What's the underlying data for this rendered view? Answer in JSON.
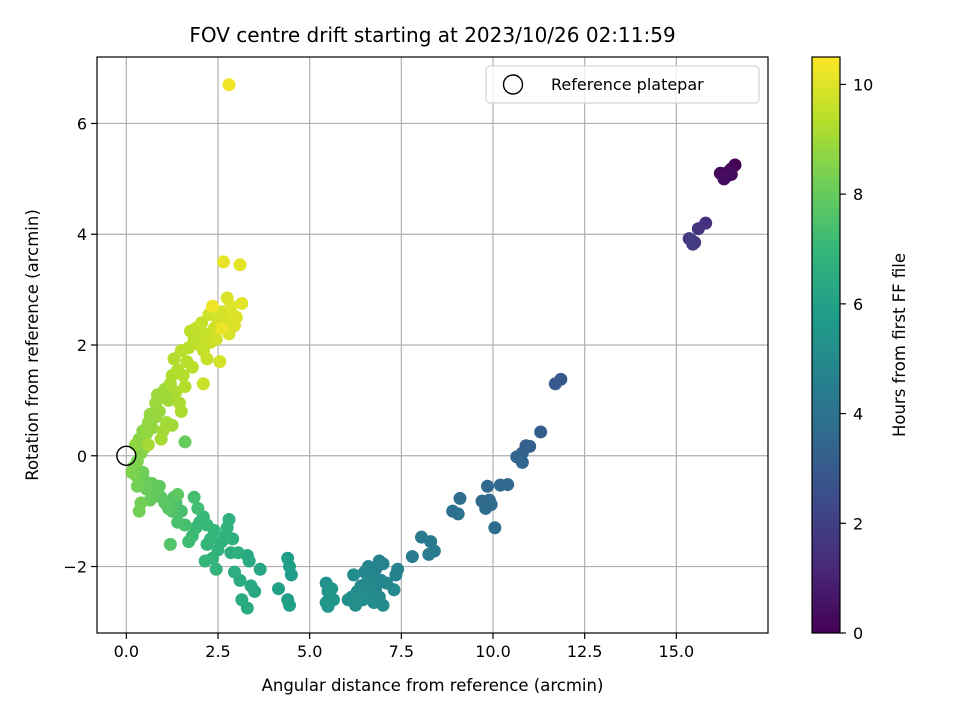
{
  "chart_data": {
    "type": "scatter",
    "title": "FOV centre drift starting at 2023/10/26 02:11:59",
    "xlabel": "Angular distance from reference (arcmin)",
    "ylabel": "Rotation from reference (arcmin)",
    "xlim": [
      -0.8,
      17.5
    ],
    "ylim": [
      -3.2,
      7.2
    ],
    "xticks": [
      0.0,
      2.5,
      5.0,
      7.5,
      10.0,
      12.5,
      15.0
    ],
    "xtick_labels": [
      "0.0",
      "2.5",
      "5.0",
      "7.5",
      "10.0",
      "12.5",
      "15.0"
    ],
    "yticks": [
      -2,
      0,
      2,
      4,
      6
    ],
    "ytick_labels": [
      "−2",
      "0",
      "2",
      "4",
      "6"
    ],
    "grid": true,
    "legend": {
      "placement": "top-right",
      "entries": [
        {
          "label": "Reference platepar",
          "marker": "open-circle"
        }
      ]
    },
    "reference_point": {
      "x": 0.0,
      "y": 0.0
    },
    "colorbar": {
      "label": "Hours from first FF file",
      "colormap": "viridis",
      "range": [
        0,
        10.5
      ],
      "ticks": [
        0,
        2,
        4,
        6,
        8,
        10
      ],
      "tick_labels": [
        "0",
        "2",
        "4",
        "6",
        "8",
        "10"
      ],
      "colors": [
        "#440154",
        "#482878",
        "#3e4989",
        "#31688e",
        "#26828e",
        "#1f9e89",
        "#35b779",
        "#6ece58",
        "#b5de2b",
        "#fde725"
      ]
    },
    "points": [
      {
        "x": 16.6,
        "y": 5.25,
        "t": 0.05
      },
      {
        "x": 16.5,
        "y": 5.18,
        "t": 0.1
      },
      {
        "x": 16.4,
        "y": 5.12,
        "t": 0.15
      },
      {
        "x": 16.3,
        "y": 5.05,
        "t": 0.2
      },
      {
        "x": 16.2,
        "y": 5.1,
        "t": 0.22
      },
      {
        "x": 16.4,
        "y": 5.06,
        "t": 0.25
      },
      {
        "x": 16.5,
        "y": 5.08,
        "t": 0.3
      },
      {
        "x": 16.3,
        "y": 5.0,
        "t": 0.35
      },
      {
        "x": 15.8,
        "y": 4.2,
        "t": 1.5
      },
      {
        "x": 15.6,
        "y": 4.1,
        "t": 1.6
      },
      {
        "x": 15.35,
        "y": 3.92,
        "t": 1.75
      },
      {
        "x": 15.5,
        "y": 3.85,
        "t": 1.8
      },
      {
        "x": 15.45,
        "y": 3.82,
        "t": 1.85
      },
      {
        "x": 15.4,
        "y": 3.9,
        "t": 1.9
      },
      {
        "x": 11.85,
        "y": 1.38,
        "t": 2.9
      },
      {
        "x": 11.7,
        "y": 1.3,
        "t": 2.95
      },
      {
        "x": 11.3,
        "y": 0.43,
        "t": 3.1
      },
      {
        "x": 11.0,
        "y": 0.17,
        "t": 3.2
      },
      {
        "x": 10.9,
        "y": 0.18,
        "t": 3.25
      },
      {
        "x": 10.8,
        "y": 0.05,
        "t": 3.3
      },
      {
        "x": 10.65,
        "y": -0.02,
        "t": 3.35
      },
      {
        "x": 10.8,
        "y": -0.12,
        "t": 3.4
      },
      {
        "x": 10.4,
        "y": -0.52,
        "t": 3.5
      },
      {
        "x": 10.2,
        "y": -0.53,
        "t": 3.55
      },
      {
        "x": 9.85,
        "y": -0.55,
        "t": 3.6
      },
      {
        "x": 9.9,
        "y": -0.8,
        "t": 3.62
      },
      {
        "x": 9.7,
        "y": -0.82,
        "t": 3.65
      },
      {
        "x": 9.8,
        "y": -0.95,
        "t": 3.68
      },
      {
        "x": 9.95,
        "y": -0.88,
        "t": 3.7
      },
      {
        "x": 10.05,
        "y": -1.3,
        "t": 3.72
      },
      {
        "x": 9.1,
        "y": -0.77,
        "t": 3.85
      },
      {
        "x": 8.9,
        "y": -1.0,
        "t": 3.9
      },
      {
        "x": 9.05,
        "y": -1.05,
        "t": 3.92
      },
      {
        "x": 8.3,
        "y": -1.55,
        "t": 4.2
      },
      {
        "x": 8.05,
        "y": -1.47,
        "t": 4.25
      },
      {
        "x": 8.4,
        "y": -1.72,
        "t": 4.3
      },
      {
        "x": 8.25,
        "y": -1.78,
        "t": 4.35
      },
      {
        "x": 7.8,
        "y": -1.82,
        "t": 4.4
      },
      {
        "x": 7.4,
        "y": -2.05,
        "t": 4.6
      },
      {
        "x": 7.35,
        "y": -2.15,
        "t": 4.65
      },
      {
        "x": 7.0,
        "y": -1.95,
        "t": 4.7
      },
      {
        "x": 6.9,
        "y": -1.9,
        "t": 4.72
      },
      {
        "x": 6.8,
        "y": -2.05,
        "t": 4.75
      },
      {
        "x": 6.6,
        "y": -2.0,
        "t": 4.78
      },
      {
        "x": 6.5,
        "y": -2.1,
        "t": 4.8
      },
      {
        "x": 6.7,
        "y": -2.2,
        "t": 4.82
      },
      {
        "x": 6.95,
        "y": -2.25,
        "t": 4.85
      },
      {
        "x": 7.1,
        "y": -2.3,
        "t": 4.88
      },
      {
        "x": 6.55,
        "y": -2.3,
        "t": 4.9
      },
      {
        "x": 6.4,
        "y": -2.35,
        "t": 4.92
      },
      {
        "x": 6.8,
        "y": -2.4,
        "t": 4.95
      },
      {
        "x": 7.3,
        "y": -2.42,
        "t": 4.98
      },
      {
        "x": 6.6,
        "y": -2.5,
        "t": 5.0
      },
      {
        "x": 6.9,
        "y": -2.55,
        "t": 5.02
      },
      {
        "x": 7.0,
        "y": -2.7,
        "t": 5.05
      },
      {
        "x": 6.75,
        "y": -2.65,
        "t": 5.08
      },
      {
        "x": 6.2,
        "y": -2.15,
        "t": 5.1
      },
      {
        "x": 6.3,
        "y": -2.45,
        "t": 5.12
      },
      {
        "x": 6.15,
        "y": -2.55,
        "t": 5.15
      },
      {
        "x": 6.25,
        "y": -2.7,
        "t": 5.18
      },
      {
        "x": 6.05,
        "y": -2.6,
        "t": 5.2
      },
      {
        "x": 6.45,
        "y": -2.6,
        "t": 5.22
      },
      {
        "x": 5.45,
        "y": -2.3,
        "t": 5.3
      },
      {
        "x": 5.5,
        "y": -2.45,
        "t": 5.35
      },
      {
        "x": 5.55,
        "y": -2.55,
        "t": 5.4
      },
      {
        "x": 5.45,
        "y": -2.65,
        "t": 5.42
      },
      {
        "x": 5.5,
        "y": -2.72,
        "t": 5.45
      },
      {
        "x": 5.65,
        "y": -2.6,
        "t": 5.48
      },
      {
        "x": 5.6,
        "y": -2.4,
        "t": 5.5
      },
      {
        "x": 4.5,
        "y": -2.15,
        "t": 5.8
      },
      {
        "x": 4.4,
        "y": -1.85,
        "t": 5.85
      },
      {
        "x": 4.45,
        "y": -2.0,
        "t": 5.88
      },
      {
        "x": 4.4,
        "y": -2.6,
        "t": 5.9
      },
      {
        "x": 4.45,
        "y": -2.7,
        "t": 5.92
      },
      {
        "x": 4.15,
        "y": -2.4,
        "t": 5.95
      },
      {
        "x": 3.65,
        "y": -2.05,
        "t": 6.2
      },
      {
        "x": 3.5,
        "y": -2.45,
        "t": 6.25
      },
      {
        "x": 3.4,
        "y": -2.35,
        "t": 6.3
      },
      {
        "x": 3.3,
        "y": -1.8,
        "t": 6.35
      },
      {
        "x": 3.35,
        "y": -1.9,
        "t": 6.38
      },
      {
        "x": 3.3,
        "y": -2.75,
        "t": 6.4
      },
      {
        "x": 3.15,
        "y": -2.6,
        "t": 6.45
      },
      {
        "x": 3.1,
        "y": -2.25,
        "t": 6.48
      },
      {
        "x": 2.95,
        "y": -2.1,
        "t": 6.5
      },
      {
        "x": 2.85,
        "y": -1.75,
        "t": 6.55
      },
      {
        "x": 2.9,
        "y": -1.5,
        "t": 6.6
      },
      {
        "x": 3.05,
        "y": -1.75,
        "t": 6.62
      },
      {
        "x": 2.75,
        "y": -1.3,
        "t": 6.7
      },
      {
        "x": 2.8,
        "y": -1.15,
        "t": 6.72
      },
      {
        "x": 2.7,
        "y": -1.45,
        "t": 6.75
      },
      {
        "x": 2.6,
        "y": -1.55,
        "t": 6.78
      },
      {
        "x": 2.5,
        "y": -1.7,
        "t": 6.8
      },
      {
        "x": 2.45,
        "y": -2.05,
        "t": 6.82
      },
      {
        "x": 2.35,
        "y": -1.85,
        "t": 6.85
      },
      {
        "x": 2.3,
        "y": -1.5,
        "t": 6.88
      },
      {
        "x": 2.2,
        "y": -1.6,
        "t": 6.9
      },
      {
        "x": 2.15,
        "y": -1.9,
        "t": 6.92
      },
      {
        "x": 2.4,
        "y": -1.35,
        "t": 6.95
      },
      {
        "x": 2.2,
        "y": -1.25,
        "t": 6.98
      },
      {
        "x": 2.1,
        "y": -1.1,
        "t": 7.0
      },
      {
        "x": 2.0,
        "y": -1.2,
        "t": 7.05
      },
      {
        "x": 1.9,
        "y": -1.3,
        "t": 7.1
      },
      {
        "x": 1.8,
        "y": -1.45,
        "t": 7.15
      },
      {
        "x": 1.7,
        "y": -1.55,
        "t": 7.2
      },
      {
        "x": 1.95,
        "y": -0.95,
        "t": 7.25
      },
      {
        "x": 1.85,
        "y": -0.75,
        "t": 7.3
      },
      {
        "x": 1.6,
        "y": -1.25,
        "t": 7.35
      },
      {
        "x": 1.5,
        "y": -1.0,
        "t": 7.4
      },
      {
        "x": 1.4,
        "y": -1.2,
        "t": 7.45
      },
      {
        "x": 1.35,
        "y": -0.85,
        "t": 7.5
      },
      {
        "x": 1.25,
        "y": -1.0,
        "t": 7.55
      },
      {
        "x": 1.2,
        "y": -1.6,
        "t": 7.6
      },
      {
        "x": 1.3,
        "y": -0.75,
        "t": 7.65
      },
      {
        "x": 1.15,
        "y": -0.95,
        "t": 7.7
      },
      {
        "x": 1.05,
        "y": -0.85,
        "t": 7.75
      },
      {
        "x": 0.95,
        "y": -0.75,
        "t": 7.8
      },
      {
        "x": 1.4,
        "y": -0.7,
        "t": 7.82
      },
      {
        "x": 0.9,
        "y": -0.55,
        "t": 7.85
      },
      {
        "x": 0.8,
        "y": -0.65,
        "t": 7.9
      },
      {
        "x": 0.7,
        "y": -0.5,
        "t": 7.95
      },
      {
        "x": 0.65,
        "y": -0.8,
        "t": 8.0
      },
      {
        "x": 0.55,
        "y": -0.6,
        "t": 8.05
      },
      {
        "x": 0.5,
        "y": -0.45,
        "t": 8.1
      },
      {
        "x": 0.45,
        "y": -0.3,
        "t": 8.15
      },
      {
        "x": 0.4,
        "y": -0.85,
        "t": 8.2
      },
      {
        "x": 0.35,
        "y": -1.0,
        "t": 8.22
      },
      {
        "x": 0.3,
        "y": -0.55,
        "t": 8.25
      },
      {
        "x": 0.25,
        "y": -0.35,
        "t": 8.3
      },
      {
        "x": 0.2,
        "y": -0.2,
        "t": 8.35
      },
      {
        "x": 0.15,
        "y": -0.3,
        "t": 8.4
      },
      {
        "x": 0.3,
        "y": -0.1,
        "t": 8.45
      },
      {
        "x": 0.4,
        "y": 0.05,
        "t": 8.5
      },
      {
        "x": 0.5,
        "y": 0.15,
        "t": 8.55
      },
      {
        "x": 0.35,
        "y": 0.3,
        "t": 8.6
      },
      {
        "x": 0.45,
        "y": 0.45,
        "t": 8.65
      },
      {
        "x": 0.25,
        "y": 0.2,
        "t": 8.7
      },
      {
        "x": 0.55,
        "y": 0.4,
        "t": 8.72
      },
      {
        "x": 0.6,
        "y": 0.6,
        "t": 8.75
      },
      {
        "x": 0.7,
        "y": 0.5,
        "t": 8.78
      },
      {
        "x": 0.65,
        "y": 0.75,
        "t": 8.8
      },
      {
        "x": 0.8,
        "y": 0.7,
        "t": 8.82
      },
      {
        "x": 0.9,
        "y": 0.8,
        "t": 8.85
      },
      {
        "x": 0.8,
        "y": 0.95,
        "t": 8.88
      },
      {
        "x": 0.95,
        "y": 1.05,
        "t": 8.9
      },
      {
        "x": 0.85,
        "y": 1.1,
        "t": 8.92
      },
      {
        "x": 1.05,
        "y": 1.2,
        "t": 8.95
      },
      {
        "x": 1.15,
        "y": 1.0,
        "t": 8.98
      },
      {
        "x": 1.6,
        "y": 0.25,
        "t": 8.0
      },
      {
        "x": 1.25,
        "y": 0.55,
        "t": 9.0
      },
      {
        "x": 1.1,
        "y": 0.6,
        "t": 9.02
      },
      {
        "x": 1.0,
        "y": 0.45,
        "t": 9.05
      },
      {
        "x": 0.6,
        "y": 0.2,
        "t": 9.08
      },
      {
        "x": 0.95,
        "y": 0.3,
        "t": 9.1
      },
      {
        "x": 1.2,
        "y": 1.3,
        "t": 9.12
      },
      {
        "x": 1.35,
        "y": 1.15,
        "t": 9.15
      },
      {
        "x": 1.45,
        "y": 0.95,
        "t": 9.18
      },
      {
        "x": 1.5,
        "y": 0.8,
        "t": 9.2
      },
      {
        "x": 1.25,
        "y": 1.45,
        "t": 9.22
      },
      {
        "x": 1.4,
        "y": 1.55,
        "t": 9.25
      },
      {
        "x": 1.3,
        "y": 1.75,
        "t": 9.28
      },
      {
        "x": 1.55,
        "y": 1.45,
        "t": 9.3
      },
      {
        "x": 1.6,
        "y": 1.25,
        "t": 9.32
      },
      {
        "x": 1.65,
        "y": 1.7,
        "t": 9.35
      },
      {
        "x": 1.5,
        "y": 1.9,
        "t": 9.38
      },
      {
        "x": 1.7,
        "y": 1.95,
        "t": 9.4
      },
      {
        "x": 1.8,
        "y": 1.6,
        "t": 9.42
      },
      {
        "x": 1.85,
        "y": 2.1,
        "t": 9.45
      },
      {
        "x": 1.75,
        "y": 2.25,
        "t": 9.48
      },
      {
        "x": 1.9,
        "y": 2.3,
        "t": 9.5
      },
      {
        "x": 2.0,
        "y": 2.0,
        "t": 9.52
      },
      {
        "x": 2.1,
        "y": 1.9,
        "t": 9.55
      },
      {
        "x": 2.05,
        "y": 2.4,
        "t": 9.58
      },
      {
        "x": 2.15,
        "y": 2.2,
        "t": 9.6
      },
      {
        "x": 2.2,
        "y": 1.75,
        "t": 9.62
      },
      {
        "x": 2.3,
        "y": 2.05,
        "t": 9.65
      },
      {
        "x": 2.1,
        "y": 1.3,
        "t": 9.68
      },
      {
        "x": 2.25,
        "y": 2.55,
        "t": 9.7
      },
      {
        "x": 2.4,
        "y": 2.3,
        "t": 9.72
      },
      {
        "x": 2.5,
        "y": 2.45,
        "t": 9.75
      },
      {
        "x": 2.45,
        "y": 2.1,
        "t": 9.78
      },
      {
        "x": 2.55,
        "y": 1.7,
        "t": 9.8
      },
      {
        "x": 2.6,
        "y": 2.6,
        "t": 9.82
      },
      {
        "x": 2.7,
        "y": 2.4,
        "t": 9.85
      },
      {
        "x": 2.75,
        "y": 2.85,
        "t": 9.88
      },
      {
        "x": 2.8,
        "y": 2.2,
        "t": 9.9
      },
      {
        "x": 2.9,
        "y": 2.55,
        "t": 9.92
      },
      {
        "x": 2.95,
        "y": 2.35,
        "t": 9.95
      },
      {
        "x": 2.85,
        "y": 2.7,
        "t": 9.98
      },
      {
        "x": 3.0,
        "y": 2.5,
        "t": 10.0
      },
      {
        "x": 3.15,
        "y": 2.75,
        "t": 10.05
      },
      {
        "x": 3.1,
        "y": 3.45,
        "t": 10.1
      },
      {
        "x": 2.65,
        "y": 3.5,
        "t": 10.15
      },
      {
        "x": 2.8,
        "y": 6.7,
        "t": 10.3
      },
      {
        "x": 2.6,
        "y": 2.3,
        "t": 10.2
      },
      {
        "x": 2.35,
        "y": 2.7,
        "t": 10.25
      }
    ]
  }
}
